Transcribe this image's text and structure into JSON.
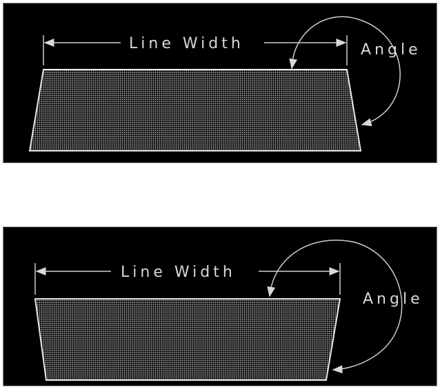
{
  "diagrams": [
    {
      "line_width_label": "Line Width",
      "angle_label": "Angle"
    },
    {
      "line_width_label": "Line Width",
      "angle_label": "Angle"
    }
  ],
  "colors": {
    "background": "#000000",
    "stroke": "#e6e6e6",
    "fill": "#b5b5b5"
  }
}
